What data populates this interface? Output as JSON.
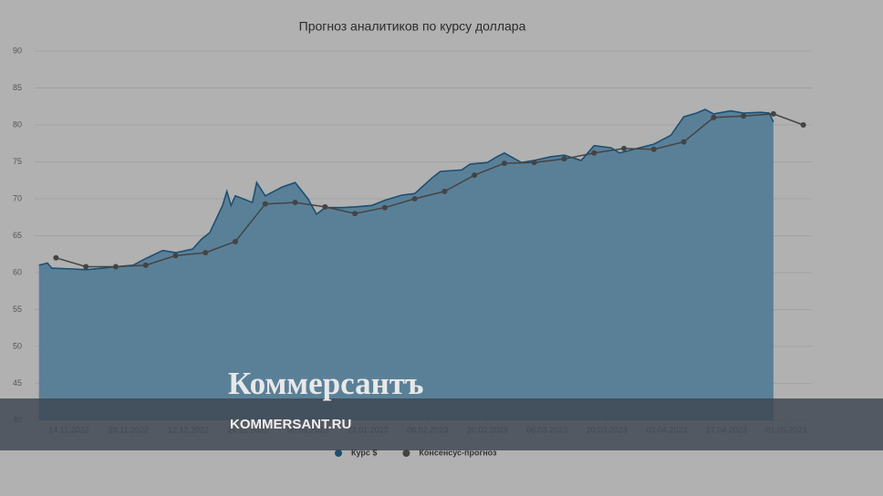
{
  "chart_data": {
    "type": "area-forecast",
    "title": "Прогноз аналитиков по курсу доллара",
    "xlim": [
      "06.11.2022",
      "07.05.2023"
    ],
    "xticks": [
      "14.11.2022",
      "28.11.2022",
      "12.12.2022",
      "26.12.2022",
      "09.01.2023",
      "23.01.2023",
      "06.02.2023",
      "20.02.2023",
      "06.03.2023",
      "20.03.2023",
      "03.04.2023",
      "17.04.2023",
      "01.05.2023"
    ],
    "ylim": [
      40,
      90
    ],
    "yticks": [
      40,
      45,
      50,
      55,
      60,
      65,
      70,
      75,
      80,
      85,
      90
    ],
    "grid": true,
    "series": [
      {
        "name": "Курс $",
        "color": "#1d4f72",
        "fill": "#5a8098",
        "x": [
          "07.11.2022",
          "09.11.2022",
          "10.11.2022",
          "15.11.2022",
          "18.11.2022",
          "22.11.2022",
          "25.11.2022",
          "29.11.2022",
          "02.12.2022",
          "06.12.2022",
          "09.12.2022",
          "13.12.2022",
          "15.12.2022",
          "17.12.2022",
          "20.12.2022",
          "21.12.2022",
          "22.12.2022",
          "23.12.2022",
          "27.12.2022",
          "28.12.2022",
          "30.12.2022",
          "03.01.2023",
          "06.01.2023",
          "09.01.2023",
          "11.01.2023",
          "13.01.2023",
          "17.01.2023",
          "20.01.2023",
          "24.01.2023",
          "27.01.2023",
          "31.01.2023",
          "03.02.2023",
          "07.02.2023",
          "09.02.2023",
          "14.02.2023",
          "16.02.2023",
          "20.02.2023",
          "22.02.2023",
          "24.02.2023",
          "28.02.2023",
          "03.03.2023",
          "07.03.2023",
          "10.03.2023",
          "14.03.2023",
          "17.03.2023",
          "21.03.2023",
          "23.03.2023",
          "27.03.2023",
          "31.03.2023",
          "04.04.2023",
          "07.04.2023",
          "10.04.2023",
          "12.04.2023",
          "14.04.2023",
          "18.04.2023",
          "21.04.2023",
          "25.04.2023",
          "27.04.2023",
          "28.04.2023"
        ],
        "values": [
          61.0,
          61.3,
          60.6,
          60.5,
          60.4,
          60.6,
          60.8,
          61.0,
          61.9,
          63.0,
          62.7,
          63.2,
          64.5,
          65.4,
          69.1,
          71.0,
          69.1,
          70.4,
          69.5,
          72.2,
          70.4,
          71.6,
          72.2,
          70.0,
          67.9,
          68.8,
          68.8,
          68.9,
          69.1,
          69.8,
          70.5,
          70.7,
          72.8,
          73.7,
          73.9,
          74.7,
          74.9,
          75.6,
          76.2,
          74.9,
          75.2,
          75.7,
          75.9,
          75.2,
          77.2,
          76.9,
          76.2,
          76.8,
          77.4,
          78.6,
          81.1,
          81.6,
          82.1,
          81.5,
          81.9,
          81.6,
          81.7,
          81.6,
          80.4
        ]
      },
      {
        "name": "Консенсус-прогноз",
        "color": "#444444",
        "x": [
          "11.11.2022",
          "18.11.2022",
          "25.11.2022",
          "02.12.2022",
          "09.12.2022",
          "16.12.2022",
          "23.12.2022",
          "30.12.2022",
          "06.01.2023",
          "13.01.2023",
          "20.01.2023",
          "27.01.2023",
          "03.02.2023",
          "10.02.2023",
          "17.02.2023",
          "24.02.2023",
          "03.03.2023",
          "10.03.2023",
          "17.03.2023",
          "24.03.2023",
          "31.03.2023",
          "07.04.2023",
          "14.04.2023",
          "21.04.2023",
          "28.04.2023",
          "05.05.2023"
        ],
        "values": [
          62.0,
          60.8,
          60.8,
          61.0,
          62.3,
          62.7,
          64.2,
          69.3,
          69.5,
          68.9,
          68.0,
          68.8,
          70.0,
          71.0,
          73.2,
          74.8,
          74.9,
          75.4,
          76.2,
          76.8,
          76.7,
          77.7,
          81.0,
          81.2,
          81.5,
          80.0
        ]
      }
    ]
  },
  "watermark": {
    "brand": "Коммерсантъ",
    "site": "KOMMERSANT.RU"
  }
}
